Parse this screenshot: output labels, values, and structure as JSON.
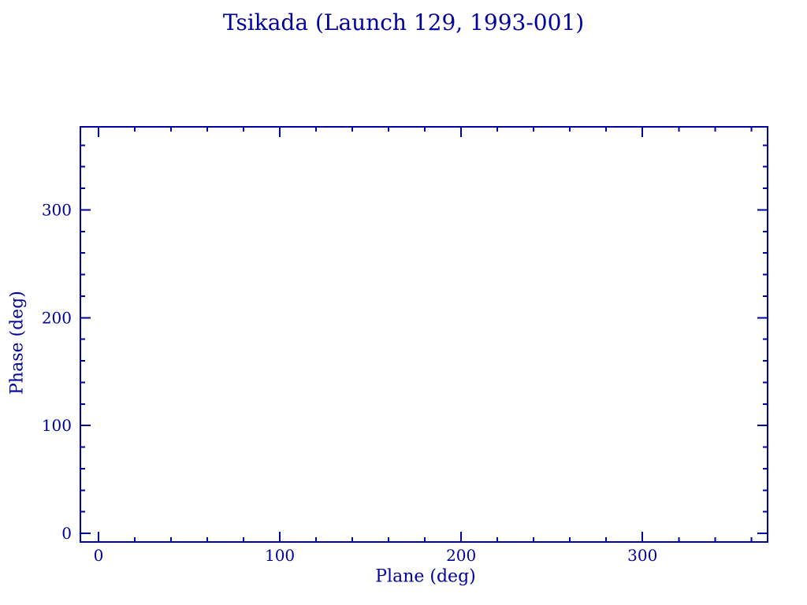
{
  "colors": {
    "ink": "#0000A0",
    "background": "#FFFFFF"
  },
  "chart_data": {
    "type": "scatter",
    "title": "Tsikada (Launch 129, 1993-001)",
    "xlabel": "Plane (deg)",
    "ylabel": "Phase (deg)",
    "xlim": [
      -10,
      369
    ],
    "ylim": [
      -8,
      377
    ],
    "x_major_ticks": [
      0,
      100,
      200,
      300
    ],
    "x_tick_labels": [
      "0",
      "100",
      "200",
      "300"
    ],
    "y_major_ticks": [
      0,
      100,
      200,
      300
    ],
    "y_tick_labels": [
      "0",
      "100",
      "200",
      "300"
    ],
    "minor_tick_interval": 20,
    "tick_direction": "in",
    "frame": "box-all-four-sides",
    "grid": false,
    "legend": null,
    "series": []
  }
}
